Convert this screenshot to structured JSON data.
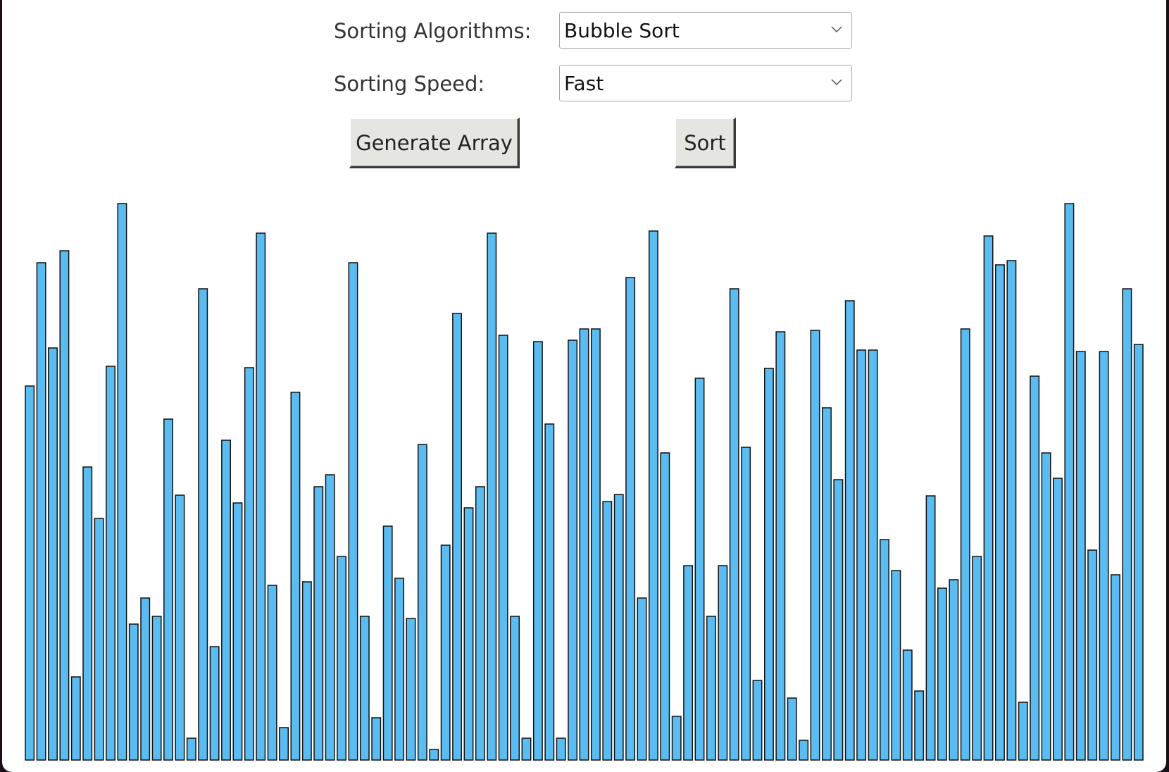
{
  "controls": {
    "algorithm_label": "Sorting Algorithms:",
    "algorithm_value": "Bubble Sort",
    "speed_label": "Sorting Speed:",
    "speed_value": "Fast",
    "generate_label": "Generate Array",
    "sort_label": "Sort"
  },
  "colors": {
    "bar_fill": "#5bbcf2",
    "bar_stroke": "#111111",
    "background": "#ffffff"
  },
  "chart_data": {
    "type": "bar",
    "values": [
      531,
      706,
      585,
      723,
      118,
      416,
      343,
      559,
      790,
      193,
      230,
      204,
      484,
      376,
      31,
      669,
      161,
      454,
      365,
      557,
      748,
      248,
      46,
      522,
      253,
      388,
      405,
      289,
      706,
      204,
      60,
      332,
      258,
      201,
      448,
      15,
      305,
      634,
      358,
      388,
      748,
      603,
      204,
      31,
      594,
      477,
      31,
      596,
      612,
      612,
      367,
      377,
      685,
      230,
      751,
      436,
      62,
      276,
      542,
      204,
      276,
      669,
      444,
      113,
      556,
      608,
      88,
      28,
      610,
      500,
      398,
      652,
      582,
      582,
      313,
      269,
      156,
      98,
      375,
      244,
      256,
      612,
      289,
      744,
      703,
      709,
      82,
      545,
      436,
      400,
      790,
      580,
      298,
      580,
      263,
      669,
      590
    ]
  }
}
